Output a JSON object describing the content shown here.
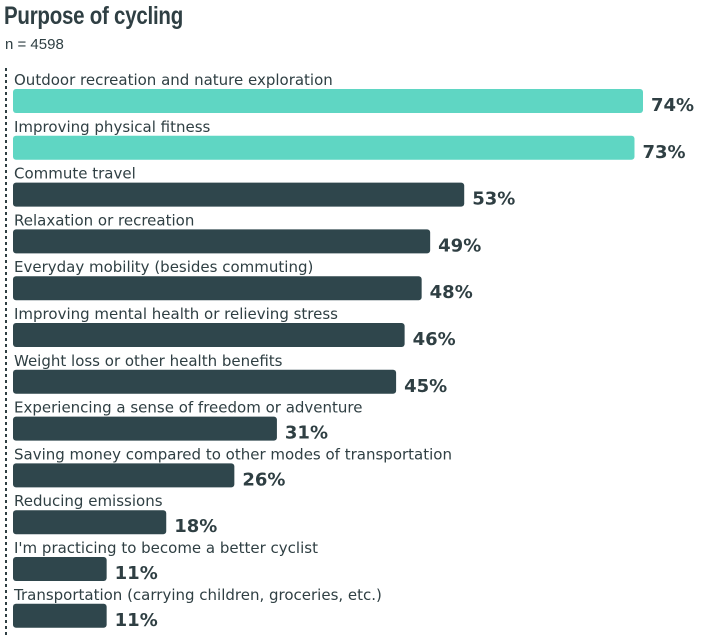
{
  "chart_data": {
    "type": "bar",
    "orientation": "horizontal",
    "title": "Purpose of cycling",
    "subtitle": "n = 4598",
    "categories": [
      "Outdoor recreation and nature exploration",
      "Improving physical fitness",
      "Commute travel",
      "Relaxation or recreation",
      "Everyday mobility (besides commuting)",
      "Improving mental health or relieving stress",
      "Weight loss or other health benefits",
      "Experiencing a sense of freedom or adventure",
      "Saving money compared to other modes of transportation",
      "Reducing emissions",
      "I'm practicing to become a better cyclist",
      "Transportation (carrying children, groceries, etc.)"
    ],
    "values": [
      74,
      73,
      53,
      49,
      48,
      46,
      45,
      31,
      26,
      18,
      11,
      11
    ],
    "value_labels": [
      "74%",
      "73%",
      "53%",
      "49%",
      "48%",
      "46%",
      "45%",
      "31%",
      "26%",
      "18%",
      "11%",
      "11%"
    ],
    "highlight_count": 2,
    "xlim": [
      0,
      100
    ],
    "grid": false,
    "legend": "none",
    "colors": {
      "highlight": "#5fd6c3",
      "default": "#2f464c",
      "text": "#2f3f43",
      "axis": "#2f3f43"
    }
  }
}
